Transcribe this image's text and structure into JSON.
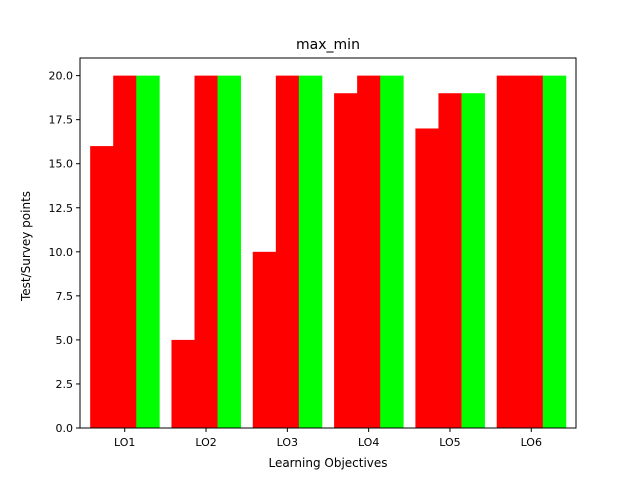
{
  "chart_data": {
    "type": "bar",
    "title": "max_min",
    "xlabel": "Learning Objectives",
    "ylabel": "Test/Survey points",
    "categories": [
      "LO1",
      "LO2",
      "LO3",
      "LO4",
      "LO5",
      "LO6"
    ],
    "ylim": [
      0,
      21
    ],
    "yticks": [
      "0.0",
      "2.5",
      "5.0",
      "7.5",
      "10.0",
      "12.5",
      "15.0",
      "17.5",
      "20.0"
    ],
    "grid": false,
    "legend": "none",
    "series": [
      {
        "color": "#ff0000",
        "values": [
          16,
          5,
          10,
          19,
          17,
          20
        ]
      },
      {
        "color": "#ff0000",
        "values": [
          20,
          20,
          20,
          20,
          19,
          20
        ]
      },
      {
        "color": "#00ff00",
        "values": [
          20,
          20,
          20,
          20,
          19,
          20
        ]
      }
    ]
  }
}
